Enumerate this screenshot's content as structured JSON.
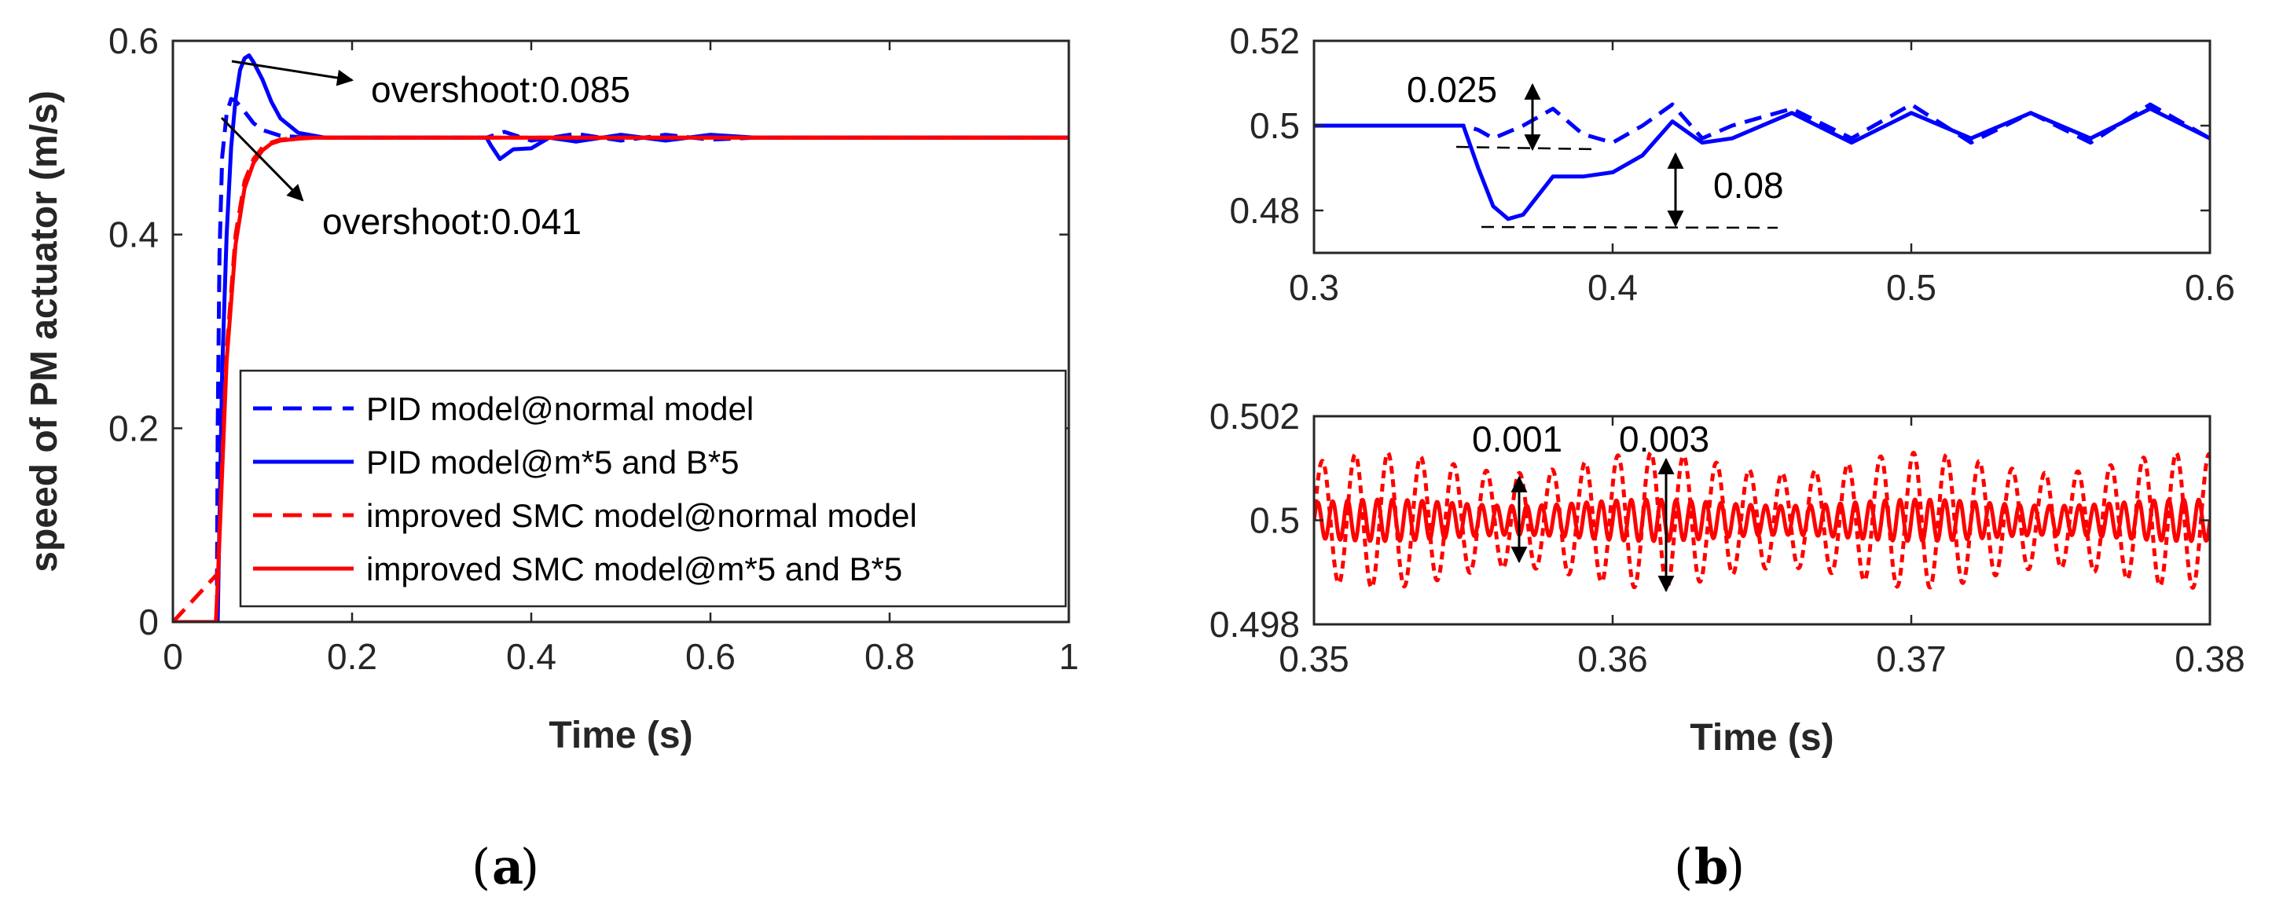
{
  "chart_data": [
    {
      "id": "a",
      "type": "line",
      "caption": "a",
      "xlabel": "Time (s)",
      "ylabel": "speed of PM actuator (m/s)",
      "xlim": [
        0,
        1
      ],
      "ylim": [
        0,
        0.6
      ],
      "xticks": [
        "0",
        "0.2",
        "0.4",
        "0.6",
        "0.8",
        "1"
      ],
      "yticks": [
        "0",
        "0.2",
        "0.4",
        "0.6"
      ],
      "legend_position": "lower-right",
      "series": [
        {
          "name": "PID model@normal model",
          "color": "#0000ff",
          "style": "dashed",
          "x": [
            0,
            0.049,
            0.05,
            0.052,
            0.055,
            0.06,
            0.065,
            0.07,
            0.08,
            0.09,
            0.1,
            0.12,
            0.15,
            0.2,
            0.35,
            0.37,
            0.4,
            0.45,
            0.5,
            0.55,
            0.6,
            0.65,
            1
          ],
          "y": [
            0,
            0,
            0.2,
            0.38,
            0.48,
            0.525,
            0.54,
            0.538,
            0.527,
            0.515,
            0.508,
            0.502,
            0.5,
            0.5,
            0.5,
            0.506,
            0.497,
            0.504,
            0.497,
            0.503,
            0.498,
            0.5,
            0.5
          ]
        },
        {
          "name": "PID model@m*5 and B*5",
          "color": "#0000ff",
          "style": "solid",
          "x": [
            0,
            0.05,
            0.055,
            0.06,
            0.065,
            0.07,
            0.075,
            0.08,
            0.085,
            0.09,
            0.1,
            0.11,
            0.12,
            0.14,
            0.17,
            0.2,
            0.35,
            0.355,
            0.365,
            0.38,
            0.4,
            0.42,
            0.45,
            0.5,
            0.55,
            0.6,
            0.65,
            1
          ],
          "y": [
            0,
            0,
            0.26,
            0.4,
            0.49,
            0.54,
            0.57,
            0.582,
            0.585,
            0.578,
            0.56,
            0.537,
            0.52,
            0.505,
            0.5,
            0.5,
            0.5,
            0.492,
            0.478,
            0.488,
            0.489,
            0.5,
            0.496,
            0.503,
            0.497,
            0.503,
            0.5,
            0.5
          ]
        },
        {
          "name": "improved SMC model@normal model",
          "color": "#ff0000",
          "style": "dashed",
          "x": [
            0,
            0.05,
            0.06,
            0.07,
            0.08,
            0.09,
            0.1,
            0.11,
            0.12,
            0.14,
            0.16,
            1
          ],
          "y": [
            0,
            0.05,
            0.28,
            0.4,
            0.455,
            0.478,
            0.49,
            0.495,
            0.498,
            0.5,
            0.5,
            0.5
          ]
        },
        {
          "name": "improved SMC model@m*5 and B*5",
          "color": "#ff0000",
          "style": "solid",
          "x": [
            0,
            0.048,
            0.05,
            0.06,
            0.07,
            0.08,
            0.09,
            0.1,
            0.11,
            0.12,
            0.14,
            0.16,
            1
          ],
          "y": [
            0,
            0,
            0.04,
            0.27,
            0.39,
            0.448,
            0.474,
            0.487,
            0.494,
            0.497,
            0.499,
            0.5,
            0.5
          ]
        }
      ],
      "annotations": [
        {
          "text": "overshoot:0.085",
          "x": 0.085,
          "y": 0.585
        },
        {
          "text": "overshoot:0.041",
          "x": 0.06,
          "y": 0.541
        }
      ]
    },
    {
      "id": "b-top",
      "type": "line",
      "caption": "b",
      "xlim": [
        0.3,
        0.6
      ],
      "ylim": [
        0.47,
        0.52
      ],
      "xticks": [
        "0.3",
        "0.4",
        "0.5",
        "0.6"
      ],
      "yticks": [
        "0.48",
        "0.5",
        "0.52"
      ],
      "series": [
        {
          "name": "PID model@normal model",
          "color": "#0000ff",
          "style": "dashed",
          "x": [
            0.3,
            0.35,
            0.355,
            0.36,
            0.37,
            0.38,
            0.39,
            0.4,
            0.41,
            0.42,
            0.43,
            0.44,
            0.46,
            0.48,
            0.5,
            0.52,
            0.54,
            0.56,
            0.58,
            0.6
          ],
          "y": [
            0.5,
            0.5,
            0.499,
            0.497,
            0.5,
            0.504,
            0.498,
            0.496,
            0.5,
            0.505,
            0.497,
            0.5,
            0.504,
            0.497,
            0.505,
            0.496,
            0.503,
            0.496,
            0.505,
            0.497
          ]
        },
        {
          "name": "PID model@m*5 and B*5",
          "color": "#0000ff",
          "style": "solid",
          "x": [
            0.3,
            0.35,
            0.355,
            0.36,
            0.365,
            0.37,
            0.38,
            0.39,
            0.4,
            0.41,
            0.42,
            0.43,
            0.44,
            0.46,
            0.48,
            0.5,
            0.52,
            0.54,
            0.56,
            0.58,
            0.6
          ],
          "y": [
            0.5,
            0.5,
            0.49,
            0.481,
            0.478,
            0.479,
            0.488,
            0.488,
            0.489,
            0.493,
            0.501,
            0.496,
            0.497,
            0.503,
            0.496,
            0.503,
            0.497,
            0.503,
            0.497,
            0.504,
            0.497
          ]
        }
      ],
      "annotations": [
        {
          "text": "0.025",
          "x": 0.38,
          "y": 0.5
        },
        {
          "text": "0.08",
          "x": 0.42,
          "y": 0.488
        }
      ]
    },
    {
      "id": "b-bottom",
      "type": "line",
      "xlabel": "Time (s)",
      "xlim": [
        0.35,
        0.38
      ],
      "ylim": [
        0.498,
        0.502
      ],
      "xticks": [
        "0.35",
        "0.36",
        "0.37",
        "0.38"
      ],
      "yticks": [
        "0.498",
        "0.5",
        "0.502"
      ],
      "series": [
        {
          "name": "improved SMC model@normal model",
          "color": "#ff0000",
          "style": "dashed",
          "description": "high-frequency oscillation around 0.5",
          "amplitude": 0.0013,
          "period": 0.0011
        },
        {
          "name": "improved SMC model@m*5 and B*5",
          "color": "#ff0000",
          "style": "solid",
          "description": "high-frequency oscillation around 0.5",
          "amplitude": 0.0004,
          "period": 0.0005
        }
      ],
      "annotations": [
        {
          "text": "0.001",
          "x": 0.357,
          "y": 0.5
        },
        {
          "text": "0.003",
          "x": 0.362,
          "y": 0.5
        }
      ]
    }
  ]
}
